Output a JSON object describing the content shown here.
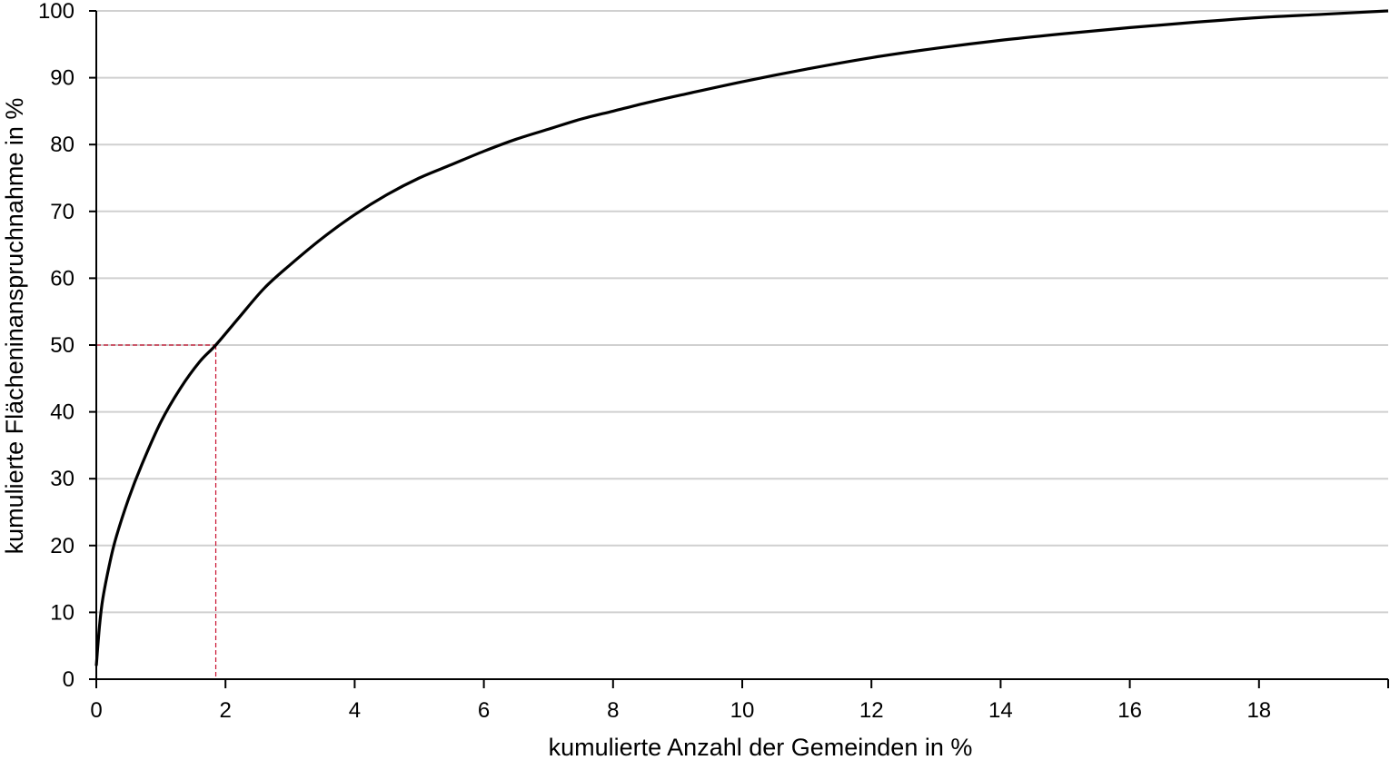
{
  "chart_data": {
    "type": "line",
    "title": "",
    "xlabel": "kumulierte Anzahl der Gemeinden in %",
    "ylabel": "kumulierte Flächeninanspruchnahme in %",
    "xlim": [
      0,
      20
    ],
    "ylim": [
      0,
      100
    ],
    "x_ticks": [
      "0",
      "2",
      "4",
      "6",
      "8",
      "10",
      "12",
      "14",
      "16",
      "18"
    ],
    "y_ticks": [
      "0",
      "10",
      "20",
      "30",
      "40",
      "50",
      "60",
      "70",
      "80",
      "90",
      "100"
    ],
    "grid": "horizontal",
    "legend": "none",
    "series": [
      {
        "color": "#000000",
        "x": [
          0,
          0.05,
          0.1,
          0.2,
          0.3,
          0.5,
          0.7,
          1.0,
          1.3,
          1.6,
          1.85,
          2.2,
          2.6,
          3.0,
          3.5,
          4.0,
          4.5,
          5.0,
          5.5,
          6.0,
          6.5,
          7.0,
          7.5,
          8.0,
          8.5,
          9.0,
          10.0,
          11.0,
          12.0,
          13.0,
          14.0,
          15.0,
          16.0,
          17.0,
          18.0,
          19.0,
          20.0
        ],
        "y": [
          2,
          8,
          12,
          17,
          21,
          27,
          32,
          38.5,
          43.5,
          47.5,
          50,
          54,
          58.5,
          62,
          66,
          69.5,
          72.5,
          75,
          77,
          79,
          80.8,
          82.3,
          83.8,
          85,
          86.2,
          87.3,
          89.4,
          91.3,
          93,
          94.4,
          95.6,
          96.6,
          97.5,
          98.3,
          99,
          99.5,
          100
        ]
      }
    ],
    "annotations": [
      {
        "type": "dashed-crosshair",
        "color": "#c8102e",
        "x": 1.85,
        "y": 50
      }
    ]
  }
}
